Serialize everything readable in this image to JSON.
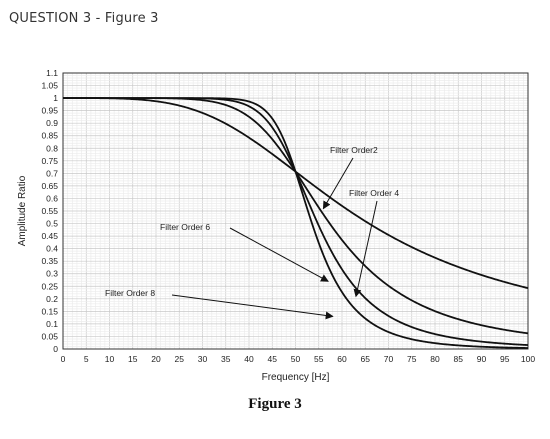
{
  "header": {
    "title": "QUESTION 3 - Figure 3"
  },
  "caption": "Figure 3",
  "chart_data": {
    "type": "line",
    "title": "",
    "xlabel": "Frequency [Hz]",
    "ylabel": "Amplitude Ratio",
    "xlim": [
      0,
      100
    ],
    "ylim": [
      0,
      1.1
    ],
    "xticks": [
      "0",
      "5",
      "10",
      "15",
      "20",
      "25",
      "30",
      "35",
      "40",
      "45",
      "50",
      "55",
      "60",
      "65",
      "70",
      "75",
      "80",
      "85",
      "90",
      "95",
      "100"
    ],
    "yticks": [
      "0",
      "0.05",
      "0.1",
      "0.15",
      "0.2",
      "0.25",
      "0.3",
      "0.35",
      "0.4",
      "0.45",
      "0.5",
      "0.55",
      "0.6",
      "0.65",
      "0.7",
      "0.75",
      "0.8",
      "0.85",
      "0.9",
      "0.95",
      "1",
      "1.05",
      "1.1"
    ],
    "grid": true,
    "cutoff_hz": 50,
    "series": [
      {
        "name": "Filter Order2",
        "order": 2
      },
      {
        "name": "Filter Order 4",
        "order": 4
      },
      {
        "name": "Filter Order 6",
        "order": 6
      },
      {
        "name": "Filter Order 8",
        "order": 8
      }
    ],
    "annotations": [
      {
        "text": "Filter Order2",
        "point": [
          56,
          0.56
        ]
      },
      {
        "text": "Filter Order 4",
        "point": [
          63,
          0.21
        ]
      },
      {
        "text": "Filter Order 6",
        "point": [
          57,
          0.27
        ]
      },
      {
        "text": "Filter Order 8",
        "point": [
          58,
          0.13
        ]
      }
    ]
  }
}
